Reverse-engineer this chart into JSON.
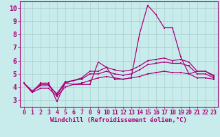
{
  "xlabel": "Windchill (Refroidissement éolien,°C)",
  "background_color": "#c8ecec",
  "line_color": "#aa0077",
  "grid_color": "#aacccc",
  "xlim": [
    -0.5,
    23.5
  ],
  "ylim": [
    2.5,
    10.5
  ],
  "yticks": [
    3,
    4,
    5,
    6,
    7,
    8,
    9,
    10
  ],
  "xticks": [
    0,
    1,
    2,
    3,
    4,
    5,
    6,
    7,
    8,
    9,
    10,
    11,
    12,
    13,
    14,
    15,
    16,
    17,
    18,
    19,
    20,
    21,
    22,
    23
  ],
  "series": [
    [
      4.3,
      3.6,
      4.3,
      4.3,
      2.9,
      4.3,
      4.2,
      4.2,
      4.2,
      5.9,
      5.5,
      4.6,
      4.6,
      4.7,
      8.0,
      10.2,
      9.5,
      8.5,
      8.5,
      6.3,
      5.0,
      5.2,
      5.2,
      4.8
    ],
    [
      4.3,
      3.7,
      4.2,
      4.2,
      3.4,
      4.3,
      4.5,
      4.7,
      5.2,
      5.2,
      5.5,
      5.3,
      5.2,
      5.3,
      5.6,
      6.0,
      6.1,
      6.2,
      6.0,
      6.1,
      5.9,
      5.2,
      5.2,
      4.9
    ],
    [
      4.3,
      3.7,
      4.1,
      4.1,
      3.5,
      4.4,
      4.5,
      4.6,
      5.0,
      5.0,
      5.2,
      5.0,
      4.9,
      5.0,
      5.3,
      5.7,
      5.8,
      5.9,
      5.8,
      5.8,
      5.6,
      5.0,
      5.0,
      4.7
    ],
    [
      4.3,
      3.6,
      3.9,
      3.9,
      3.3,
      4.0,
      4.2,
      4.3,
      4.5,
      4.7,
      4.8,
      4.7,
      4.6,
      4.7,
      4.8,
      5.0,
      5.1,
      5.2,
      5.1,
      5.1,
      5.0,
      4.7,
      4.7,
      4.6
    ]
  ],
  "font_name": "monospace",
  "xlabel_fontsize": 6.5,
  "tick_fontsize": 6.0,
  "linewidth": 0.9,
  "markersize": 2.0
}
